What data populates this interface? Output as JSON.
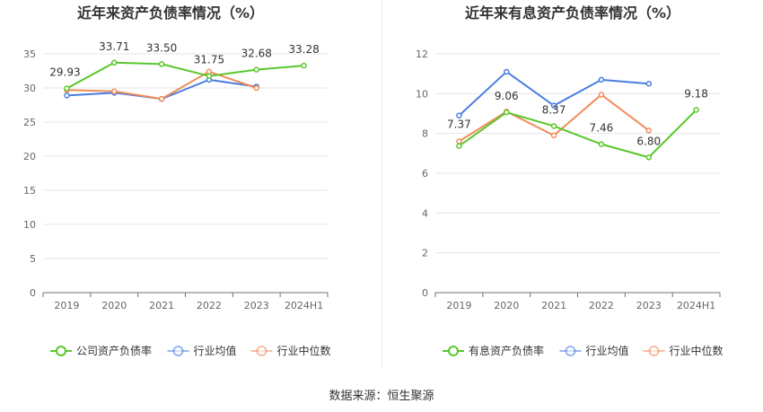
{
  "source": "数据来源：恒生聚源",
  "chart_data": [
    {
      "type": "line",
      "title": "近年来资产负债率情况（%）",
      "categories": [
        "2019",
        "2020",
        "2021",
        "2022",
        "2023",
        "2024H1"
      ],
      "ylim": [
        0,
        35
      ],
      "yticks": [
        0,
        5,
        10,
        15,
        20,
        25,
        30,
        35
      ],
      "grid": true,
      "legend_position": "bottom",
      "series": [
        {
          "name": "公司资产负债率",
          "color": "#5ac72c",
          "values": [
            29.93,
            33.71,
            33.5,
            31.75,
            32.68,
            33.28
          ],
          "labels": [
            "29.93",
            "33.71",
            "33.50",
            "31.75",
            "32.68",
            "33.28"
          ]
        },
        {
          "name": "行业均值",
          "color": "#4a7ede",
          "values": [
            28.9,
            29.3,
            28.4,
            31.2,
            30.2,
            null
          ]
        },
        {
          "name": "行业中位数",
          "color": "#f08c5a",
          "values": [
            29.7,
            29.5,
            28.4,
            32.4,
            30.0,
            null
          ]
        }
      ]
    },
    {
      "type": "line",
      "title": "近年来有息资产负债率情况（%）",
      "categories": [
        "2019",
        "2020",
        "2021",
        "2022",
        "2023",
        "2024H1"
      ],
      "ylim": [
        0,
        12
      ],
      "yticks": [
        0,
        2,
        4,
        6,
        8,
        10,
        12
      ],
      "grid": true,
      "legend_position": "bottom",
      "series": [
        {
          "name": "有息资产负债率",
          "color": "#5ac72c",
          "values": [
            7.37,
            9.06,
            8.37,
            7.46,
            6.8,
            9.18
          ],
          "labels": [
            "7.37",
            "9.06",
            "8.37",
            "7.46",
            "6.80",
            "9.18"
          ]
        },
        {
          "name": "行业均值",
          "color": "#4a7ede",
          "values": [
            8.9,
            11.1,
            9.4,
            10.7,
            10.5,
            null
          ]
        },
        {
          "name": "行业中位数",
          "color": "#f08c5a",
          "values": [
            7.6,
            9.1,
            7.9,
            9.95,
            8.15,
            null
          ]
        }
      ]
    }
  ]
}
